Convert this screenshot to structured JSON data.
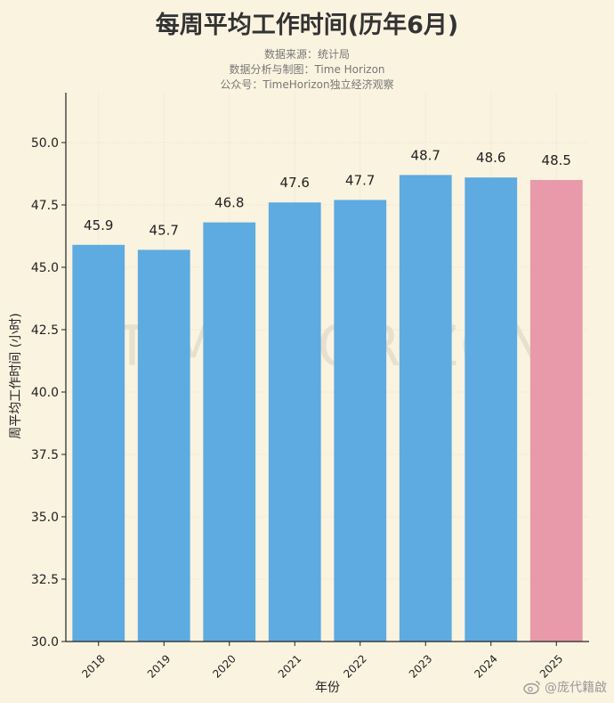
{
  "title": "每周平均工作时间(历年6月)",
  "credits": [
    "数据来源：统计局",
    "数据分析与制图：Time Horizon",
    "公众号：TimeHorizon独立经济观察"
  ],
  "watermark": "TIME HORIZON",
  "weibo_handle": "@庞代籍啟",
  "colors": {
    "bar": "#5dabe0",
    "bar_highlight": "#e89aab",
    "background": "#faf3e0"
  },
  "chart_data": {
    "type": "bar",
    "categories": [
      "2018",
      "2019",
      "2020",
      "2021",
      "2022",
      "2023",
      "2024",
      "2025"
    ],
    "values": [
      45.9,
      45.7,
      46.8,
      47.6,
      47.7,
      48.7,
      48.6,
      48.5
    ],
    "highlight_index": 7,
    "xlabel": "年份",
    "ylabel": "周平均工作时间 (小时)",
    "ylim": [
      30,
      52
    ],
    "yticks": [
      "30.0",
      "32.5",
      "35.0",
      "37.5",
      "40.0",
      "42.5",
      "45.0",
      "47.5",
      "50.0"
    ],
    "grid": true
  }
}
